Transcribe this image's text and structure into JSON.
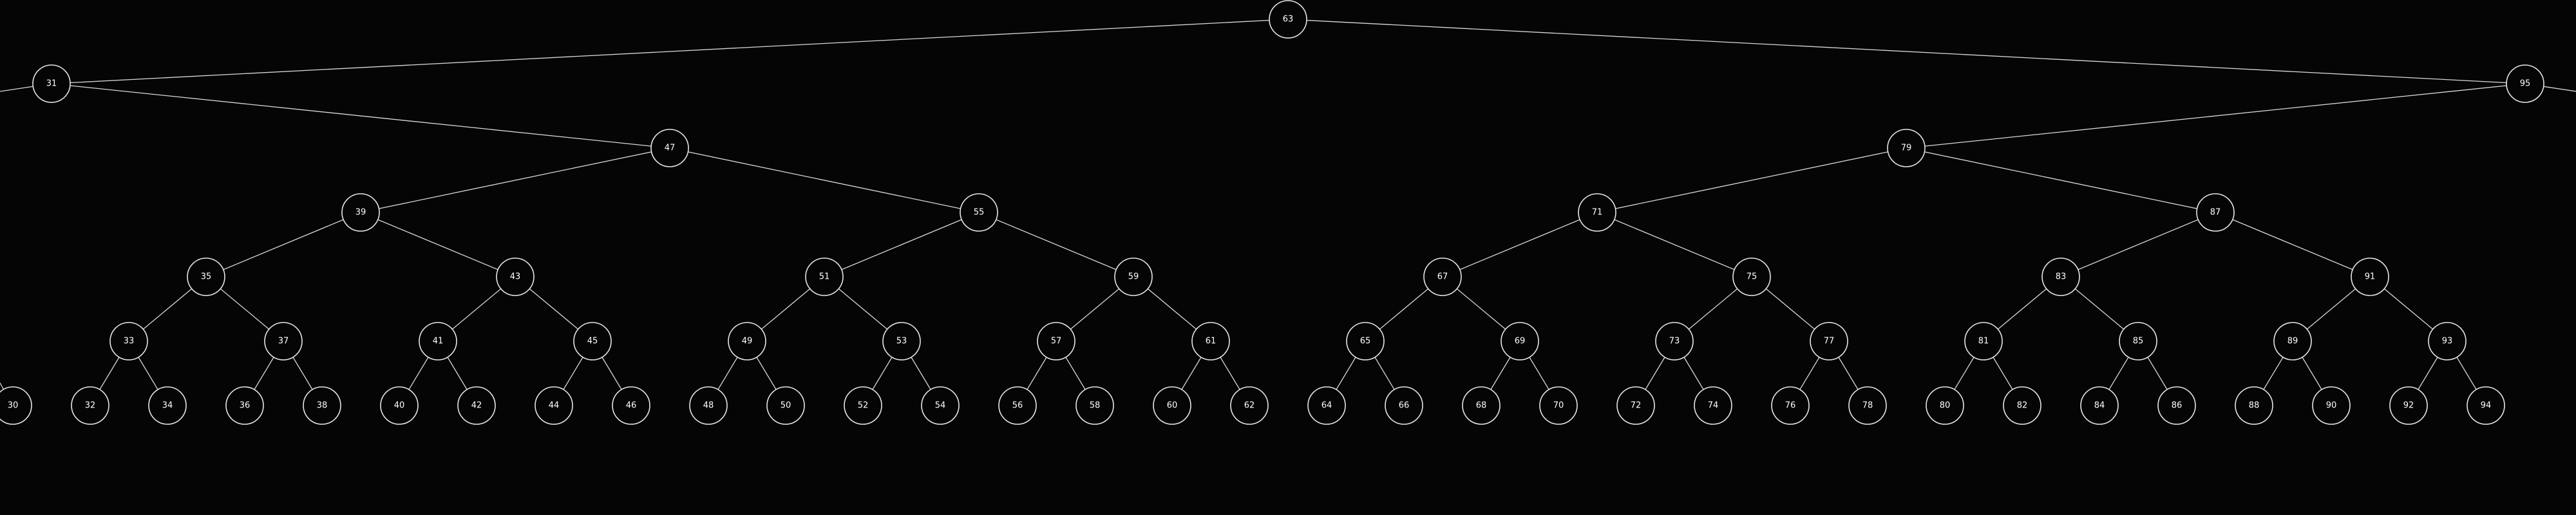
{
  "diagram": {
    "type": "binary-search-tree",
    "colors": {
      "background": "#050505",
      "edge": "#d8d8d8",
      "node_stroke": "#e6e6e6",
      "node_fill": "#050505",
      "label": "#ffffff"
    },
    "nodes": [
      {
        "id": "63",
        "label": "63"
      },
      {
        "id": "31",
        "label": "31",
        "parent": "63"
      },
      {
        "id": "95",
        "label": "95",
        "parent": "63"
      },
      {
        "id": "47",
        "label": "47",
        "parent": "31"
      },
      {
        "id": "79",
        "label": "79",
        "parent": "95"
      },
      {
        "id": "39",
        "label": "39",
        "parent": "47"
      },
      {
        "id": "55",
        "label": "55",
        "parent": "47"
      },
      {
        "id": "71",
        "label": "71",
        "parent": "79"
      },
      {
        "id": "87",
        "label": "87",
        "parent": "79"
      },
      {
        "id": "35",
        "label": "35",
        "parent": "39"
      },
      {
        "id": "43",
        "label": "43",
        "parent": "39"
      },
      {
        "id": "51",
        "label": "51",
        "parent": "55"
      },
      {
        "id": "59",
        "label": "59",
        "parent": "55"
      },
      {
        "id": "67",
        "label": "67",
        "parent": "71"
      },
      {
        "id": "75",
        "label": "75",
        "parent": "71"
      },
      {
        "id": "83",
        "label": "83",
        "parent": "87"
      },
      {
        "id": "91",
        "label": "91",
        "parent": "87"
      },
      {
        "id": "33",
        "label": "33",
        "parent": "35"
      },
      {
        "id": "37",
        "label": "37",
        "parent": "35"
      },
      {
        "id": "41",
        "label": "41",
        "parent": "43"
      },
      {
        "id": "45",
        "label": "45",
        "parent": "43"
      },
      {
        "id": "49",
        "label": "49",
        "parent": "51"
      },
      {
        "id": "53",
        "label": "53",
        "parent": "51"
      },
      {
        "id": "57",
        "label": "57",
        "parent": "59"
      },
      {
        "id": "61",
        "label": "61",
        "parent": "59"
      },
      {
        "id": "65",
        "label": "65",
        "parent": "67"
      },
      {
        "id": "69",
        "label": "69",
        "parent": "67"
      },
      {
        "id": "73",
        "label": "73",
        "parent": "75"
      },
      {
        "id": "77",
        "label": "77",
        "parent": "75"
      },
      {
        "id": "81",
        "label": "81",
        "parent": "83"
      },
      {
        "id": "85",
        "label": "85",
        "parent": "83"
      },
      {
        "id": "89",
        "label": "89",
        "parent": "91"
      },
      {
        "id": "93",
        "label": "93",
        "parent": "91"
      },
      {
        "id": "30",
        "label": "30"
      },
      {
        "id": "32",
        "label": "32",
        "parent": "33"
      },
      {
        "id": "34",
        "label": "34",
        "parent": "33"
      },
      {
        "id": "36",
        "label": "36",
        "parent": "37"
      },
      {
        "id": "38",
        "label": "38",
        "parent": "37"
      },
      {
        "id": "40",
        "label": "40",
        "parent": "41"
      },
      {
        "id": "42",
        "label": "42",
        "parent": "41"
      },
      {
        "id": "44",
        "label": "44",
        "parent": "45"
      },
      {
        "id": "46",
        "label": "46",
        "parent": "45"
      },
      {
        "id": "48",
        "label": "48",
        "parent": "49"
      },
      {
        "id": "50",
        "label": "50",
        "parent": "49"
      },
      {
        "id": "52",
        "label": "52",
        "parent": "53"
      },
      {
        "id": "54",
        "label": "54",
        "parent": "53"
      },
      {
        "id": "56",
        "label": "56",
        "parent": "57"
      },
      {
        "id": "58",
        "label": "58",
        "parent": "57"
      },
      {
        "id": "60",
        "label": "60",
        "parent": "61"
      },
      {
        "id": "62",
        "label": "62",
        "parent": "61"
      },
      {
        "id": "64",
        "label": "64",
        "parent": "65"
      },
      {
        "id": "66",
        "label": "66",
        "parent": "65"
      },
      {
        "id": "68",
        "label": "68",
        "parent": "69"
      },
      {
        "id": "70",
        "label": "70",
        "parent": "69"
      },
      {
        "id": "72",
        "label": "72",
        "parent": "73"
      },
      {
        "id": "74",
        "label": "74",
        "parent": "73"
      },
      {
        "id": "76",
        "label": "76",
        "parent": "77"
      },
      {
        "id": "78",
        "label": "78",
        "parent": "77"
      },
      {
        "id": "80",
        "label": "80",
        "parent": "81"
      },
      {
        "id": "82",
        "label": "82",
        "parent": "81"
      },
      {
        "id": "84",
        "label": "84",
        "parent": "85"
      },
      {
        "id": "86",
        "label": "86",
        "parent": "85"
      },
      {
        "id": "88",
        "label": "88",
        "parent": "89"
      },
      {
        "id": "90",
        "label": "90",
        "parent": "89"
      },
      {
        "id": "92",
        "label": "92",
        "parent": "93"
      },
      {
        "id": "94",
        "label": "94",
        "parent": "93"
      }
    ]
  }
}
